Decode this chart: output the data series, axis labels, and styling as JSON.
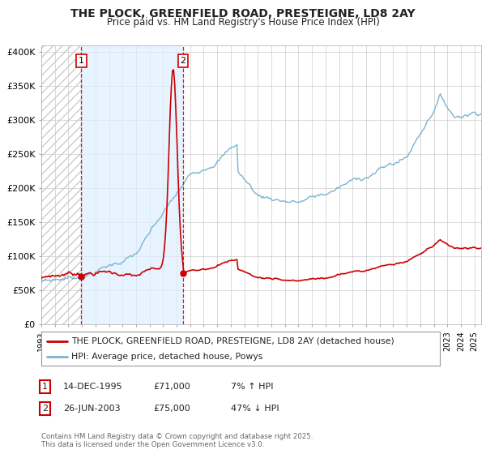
{
  "title": "THE PLOCK, GREENFIELD ROAD, PRESTEIGNE, LD8 2AY",
  "subtitle": "Price paid vs. HM Land Registry's House Price Index (HPI)",
  "legend_line1": "THE PLOCK, GREENFIELD ROAD, PRESTEIGNE, LD8 2AY (detached house)",
  "legend_line2": "HPI: Average price, detached house, Powys",
  "annotation1_date": "14-DEC-1995",
  "annotation1_price": "£71,000",
  "annotation1_hpi": "7% ↑ HPI",
  "annotation2_date": "26-JUN-2003",
  "annotation2_price": "£75,000",
  "annotation2_hpi": "47% ↓ HPI",
  "footer": "Contains HM Land Registry data © Crown copyright and database right 2025.\nThis data is licensed under the Open Government Licence v3.0.",
  "ylim": [
    0,
    410000
  ],
  "yticks": [
    0,
    50000,
    100000,
    150000,
    200000,
    250000,
    300000,
    350000,
    400000
  ],
  "ytick_labels": [
    "£0",
    "£50K",
    "£100K",
    "£150K",
    "£200K",
    "£250K",
    "£300K",
    "£350K",
    "£400K"
  ],
  "sale1_year": 1995.95,
  "sale1_price": 71000,
  "sale2_year": 2003.48,
  "sale2_price": 75000,
  "hpi_color": "#7ab3d4",
  "price_color": "#cc0000",
  "vline_color": "#cc0000",
  "shade_color": "#ddeeff",
  "grid_color": "#cccccc",
  "background_color": "#ffffff",
  "hatch_color": "#cccccc",
  "xmin": 1993.0,
  "xmax": 2025.5
}
